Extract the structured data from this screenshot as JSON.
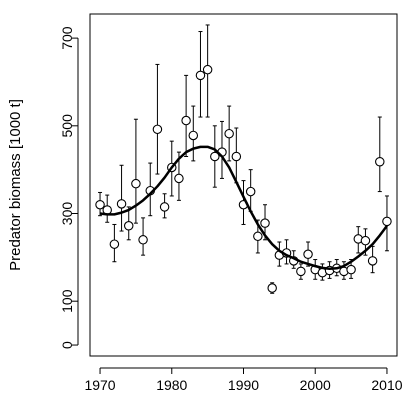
{
  "chart_data": {
    "type": "scatter",
    "title": "",
    "xlabel": "",
    "ylabel": "Predator biomass [1000 t]",
    "xlim": [
      1968.6,
      2011.4
    ],
    "ylim": [
      -25,
      755
    ],
    "xticks": [
      1970,
      1980,
      1990,
      2000,
      2010
    ],
    "yticks": [
      0,
      100,
      300,
      500,
      700
    ],
    "grid": false,
    "legend": "none",
    "colors": {
      "points": "#000000",
      "line": "#000000"
    },
    "series": [
      {
        "kind": "points-with-error-bars",
        "x": [
          1970,
          1971,
          1972,
          1973,
          1974,
          1975,
          1976,
          1977,
          1978,
          1979,
          1980,
          1981,
          1982,
          1983,
          1984,
          1985,
          1986,
          1987,
          1988,
          1989,
          1990,
          1991,
          1992,
          1993,
          1994,
          1995,
          1996,
          1997,
          1998,
          1999,
          2000,
          2001,
          2002,
          2003,
          2004,
          2005,
          2006,
          2007,
          2008,
          2009,
          2010
        ],
        "y": [
          320,
          308,
          230,
          322,
          272,
          368,
          240,
          352,
          492,
          315,
          405,
          380,
          512,
          478,
          615,
          628,
          430,
          440,
          482,
          430,
          320,
          350,
          248,
          278,
          130,
          205,
          210,
          192,
          168,
          207,
          172,
          165,
          170,
          175,
          168,
          172,
          242,
          238,
          192,
          418,
          282
        ],
        "y_lower": [
          295,
          280,
          190,
          260,
          240,
          278,
          205,
          295,
          390,
          290,
          340,
          330,
          430,
          420,
          520,
          520,
          360,
          380,
          420,
          370,
          275,
          305,
          210,
          240,
          118,
          180,
          185,
          175,
          150,
          180,
          150,
          148,
          152,
          158,
          150,
          152,
          210,
          205,
          165,
          350,
          215
        ],
        "y_upper": [
          348,
          342,
          275,
          410,
          315,
          515,
          290,
          415,
          640,
          345,
          465,
          440,
          615,
          545,
          715,
          730,
          500,
          510,
          545,
          495,
          375,
          400,
          285,
          320,
          142,
          235,
          240,
          215,
          185,
          235,
          195,
          185,
          190,
          195,
          190,
          195,
          270,
          265,
          225,
          520,
          340
        ]
      },
      {
        "kind": "smooth-line",
        "x": [
          1970,
          1971,
          1972,
          1973,
          1974,
          1975,
          1976,
          1977,
          1978,
          1979,
          1980,
          1981,
          1982,
          1983,
          1984,
          1985,
          1986,
          1987,
          1988,
          1989,
          1990,
          1991,
          1992,
          1993,
          1994,
          1995,
          1996,
          1997,
          1998,
          1999,
          2000,
          2001,
          2002,
          2003,
          2004,
          2005,
          2006,
          2007,
          2008,
          2009,
          2010
        ],
        "y": [
          300,
          298,
          298,
          302,
          308,
          318,
          330,
          345,
          362,
          382,
          405,
          425,
          440,
          448,
          452,
          452,
          446,
          430,
          405,
          372,
          338,
          305,
          275,
          250,
          230,
          215,
          205,
          198,
          190,
          185,
          180,
          176,
          174,
          175,
          180,
          190,
          202,
          215,
          230,
          250,
          272
        ]
      }
    ]
  }
}
